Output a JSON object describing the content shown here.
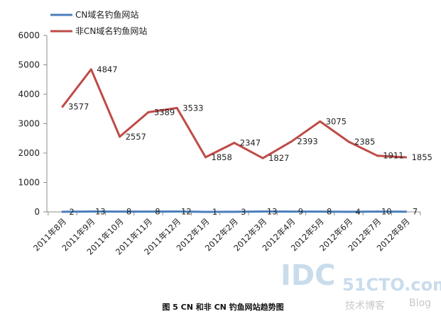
{
  "chart_data": {
    "type": "line",
    "title": "",
    "xlabel": "",
    "ylabel": "",
    "ylim": [
      0,
      6000
    ],
    "yticks": [
      "0",
      "1000",
      "2000",
      "3000",
      "4000",
      "5000",
      "6000"
    ],
    "grid": false,
    "legend_position": "top-left",
    "categories": [
      "2011年8月",
      "2011年9月",
      "2011年10月",
      "2011年11月",
      "2011年12月",
      "2012年1月",
      "2012年2月",
      "2012年3月",
      "2012年4月",
      "2012年5月",
      "2012年6月",
      "2012年7月",
      "2012年8月"
    ],
    "series": [
      {
        "name": "CN域名钓鱼网站",
        "color": "#4a7ebb",
        "values": [
          2,
          13,
          8,
          8,
          12,
          1,
          3,
          13,
          9,
          8,
          4,
          10,
          7
        ]
      },
      {
        "name": "非CN域名钓鱼网站",
        "color": "#be4b48",
        "values": [
          3577,
          4847,
          2557,
          3389,
          3533,
          1858,
          2347,
          1827,
          2393,
          3075,
          2385,
          1911,
          1855
        ]
      }
    ]
  },
  "caption": "图 5 CN 和非 CN 钓鱼网站趋势图",
  "watermark": {
    "brand": "IDC",
    "site": "51CTO.com",
    "subtitle": "技术博客",
    "blog": "Blog"
  }
}
